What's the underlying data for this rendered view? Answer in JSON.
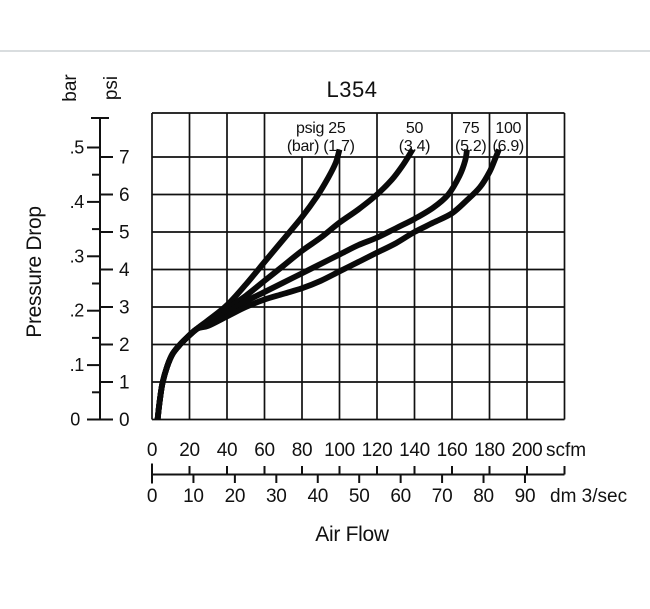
{
  "page": {
    "background": "#ffffff",
    "divider_color": "#d9dddf",
    "ink_color": "#111111",
    "curve_color": "#0a0a0a"
  },
  "chart_data": {
    "type": "line",
    "title": "L354",
    "grid": true,
    "x_axis": {
      "label": "Air Flow",
      "xlim_scfm": [
        0,
        220
      ],
      "scales": [
        {
          "unit": "scfm",
          "ticks": [
            "0",
            "20",
            "40",
            "60",
            "80",
            "100",
            "120",
            "140",
            "160",
            "180",
            "200"
          ]
        },
        {
          "unit": "dm 3/sec",
          "ticks": [
            "0",
            "10",
            "20",
            "30",
            "40",
            "50",
            "60",
            "70",
            "80",
            "90"
          ]
        }
      ]
    },
    "y_axis": {
      "label": "Pressure Drop",
      "ylim_psi": [
        0,
        8
      ],
      "scales": [
        {
          "unit": "bar",
          "ticks": [
            "0",
            ".1",
            ".2",
            ".3",
            ".4",
            ".5"
          ],
          "minor_step_bar": 0.05
        },
        {
          "unit": "psi",
          "ticks": [
            "0",
            "1",
            "2",
            "3",
            "4",
            "5",
            "6",
            "7"
          ]
        }
      ]
    },
    "series": [
      {
        "name": "25 psig (1.7 bar)",
        "label_line1": "psig 25",
        "label_line2": "(bar) (1.7)",
        "label_x_scfm": 90,
        "points_scfm_psi": [
          [
            3,
            0
          ],
          [
            4,
            0.45
          ],
          [
            5.5,
            0.95
          ],
          [
            8,
            1.4
          ],
          [
            11,
            1.75
          ],
          [
            15,
            2.0
          ],
          [
            19,
            2.2
          ],
          [
            24,
            2.42
          ],
          [
            30,
            2.65
          ],
          [
            40,
            3.05
          ],
          [
            50,
            3.6
          ],
          [
            60,
            4.2
          ],
          [
            70,
            4.8
          ],
          [
            80,
            5.4
          ],
          [
            88,
            5.95
          ],
          [
            94,
            6.45
          ],
          [
            98,
            6.85
          ],
          [
            100,
            7.2
          ]
        ]
      },
      {
        "name": "50 psig (3.4 bar)",
        "label_line1": "50",
        "label_line2": "(3.4)",
        "label_x_scfm": 140,
        "points_scfm_psi": [
          [
            3,
            0
          ],
          [
            4,
            0.45
          ],
          [
            5.5,
            0.95
          ],
          [
            8,
            1.4
          ],
          [
            11,
            1.75
          ],
          [
            15,
            2.0
          ],
          [
            19,
            2.2
          ],
          [
            24,
            2.42
          ],
          [
            30,
            2.6
          ],
          [
            40,
            2.95
          ],
          [
            50,
            3.3
          ],
          [
            60,
            3.7
          ],
          [
            70,
            4.1
          ],
          [
            80,
            4.5
          ],
          [
            90,
            4.85
          ],
          [
            100,
            5.25
          ],
          [
            110,
            5.6
          ],
          [
            120,
            6.0
          ],
          [
            128,
            6.4
          ],
          [
            134,
            6.8
          ],
          [
            139,
            7.2
          ]
        ]
      },
      {
        "name": "75 psig (5.2 bar)",
        "label_line1": "75",
        "label_line2": "(5.2)",
        "label_x_scfm": 170,
        "points_scfm_psi": [
          [
            3,
            0
          ],
          [
            4,
            0.45
          ],
          [
            5.5,
            0.95
          ],
          [
            8,
            1.4
          ],
          [
            11,
            1.75
          ],
          [
            15,
            2.0
          ],
          [
            19,
            2.2
          ],
          [
            24,
            2.42
          ],
          [
            30,
            2.55
          ],
          [
            40,
            2.85
          ],
          [
            50,
            3.15
          ],
          [
            60,
            3.4
          ],
          [
            70,
            3.65
          ],
          [
            80,
            3.9
          ],
          [
            90,
            4.15
          ],
          [
            100,
            4.4
          ],
          [
            110,
            4.65
          ],
          [
            120,
            4.85
          ],
          [
            130,
            5.1
          ],
          [
            140,
            5.35
          ],
          [
            150,
            5.65
          ],
          [
            158,
            6.0
          ],
          [
            164,
            6.5
          ],
          [
            167,
            6.9
          ],
          [
            168,
            7.2
          ]
        ]
      },
      {
        "name": "100 psig (6.9 bar)",
        "label_line1": "100",
        "label_line2": "(6.9)",
        "label_x_scfm": 190,
        "points_scfm_psi": [
          [
            3,
            0
          ],
          [
            4,
            0.45
          ],
          [
            5.5,
            0.95
          ],
          [
            8,
            1.4
          ],
          [
            11,
            1.75
          ],
          [
            15,
            2.0
          ],
          [
            19,
            2.2
          ],
          [
            24,
            2.42
          ],
          [
            30,
            2.5
          ],
          [
            40,
            2.75
          ],
          [
            50,
            3.0
          ],
          [
            60,
            3.2
          ],
          [
            70,
            3.35
          ],
          [
            80,
            3.5
          ],
          [
            90,
            3.7
          ],
          [
            100,
            3.95
          ],
          [
            110,
            4.2
          ],
          [
            120,
            4.45
          ],
          [
            130,
            4.7
          ],
          [
            140,
            5.0
          ],
          [
            150,
            5.25
          ],
          [
            160,
            5.5
          ],
          [
            168,
            5.85
          ],
          [
            175,
            6.2
          ],
          [
            180,
            6.6
          ],
          [
            183,
            6.95
          ],
          [
            185,
            7.2
          ]
        ]
      }
    ]
  }
}
